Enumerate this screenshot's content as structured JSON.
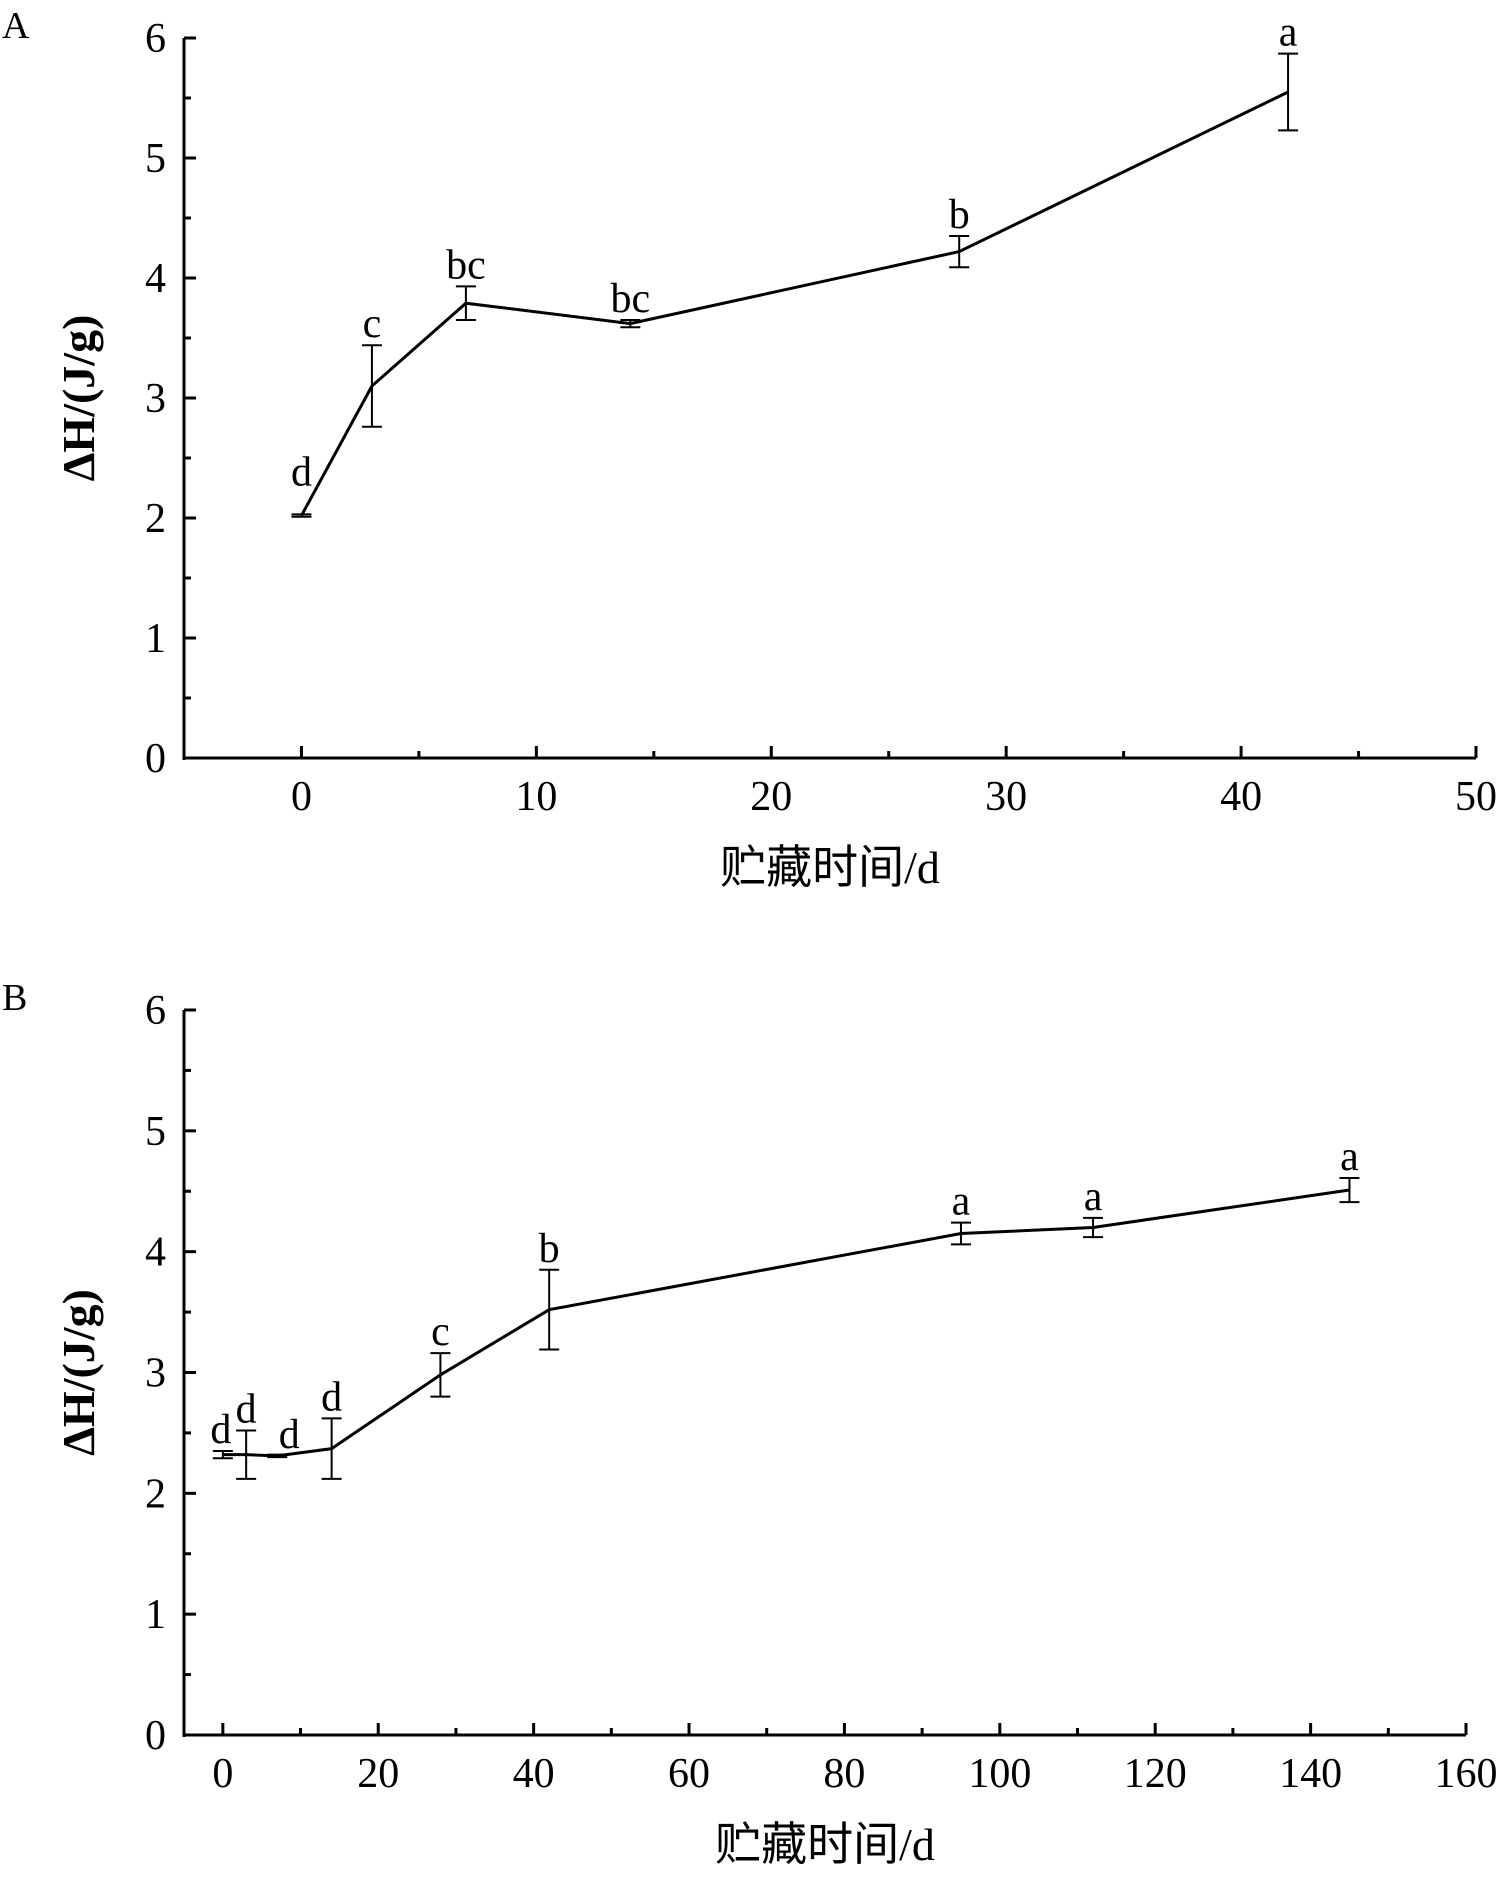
{
  "chart_data": [
    {
      "type": "line",
      "panel_label": "A",
      "xlabel": "贮藏时间/d",
      "ylabel": "ΔH/(J/g)",
      "xlim": [
        -5,
        50
      ],
      "ylim": [
        0,
        6
      ],
      "xticks": [
        0,
        10,
        20,
        30,
        40,
        50
      ],
      "yticks": [
        0,
        1,
        2,
        3,
        4,
        5,
        6
      ],
      "grid": false,
      "x": [
        0,
        3,
        7,
        14,
        28,
        42
      ],
      "y": [
        2.02,
        3.1,
        3.79,
        3.62,
        4.22,
        5.55
      ],
      "error": [
        0.01,
        0.34,
        0.14,
        0.03,
        0.13,
        0.32
      ],
      "point_labels": [
        "d",
        "c",
        "bc",
        "bc",
        "b",
        "a"
      ]
    },
    {
      "type": "line",
      "panel_label": "B",
      "xlabel": "贮藏时间/d",
      "ylabel": "ΔH/(J/g)",
      "xlim": [
        -5,
        160
      ],
      "ylim": [
        0,
        6
      ],
      "xticks": [
        0,
        20,
        40,
        60,
        80,
        100,
        120,
        140,
        160
      ],
      "yticks": [
        0,
        1,
        2,
        3,
        4,
        5,
        6
      ],
      "grid": false,
      "x": [
        0,
        3,
        7,
        14,
        28,
        42,
        95,
        112,
        145
      ],
      "y": [
        2.32,
        2.32,
        2.31,
        2.37,
        2.98,
        3.52,
        4.15,
        4.2,
        4.51
      ],
      "error": [
        0.03,
        0.2,
        0.01,
        0.25,
        0.18,
        0.33,
        0.09,
        0.08,
        0.1
      ],
      "point_labels": [
        "d",
        "d",
        "d",
        "d",
        "c",
        "b",
        "a",
        "a",
        "a"
      ]
    }
  ]
}
